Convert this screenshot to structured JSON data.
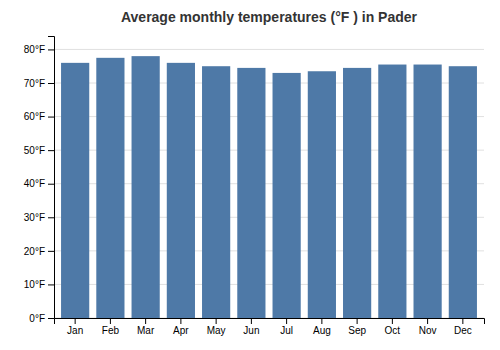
{
  "chart_data": {
    "type": "bar",
    "title": "Average monthly temperatures (°F ) in Pader",
    "categories": [
      "Jan",
      "Feb",
      "Mar",
      "Apr",
      "May",
      "Jun",
      "Jul",
      "Aug",
      "Sep",
      "Oct",
      "Nov",
      "Dec"
    ],
    "values": [
      76,
      77.5,
      78,
      76,
      75,
      74.5,
      73,
      73.5,
      74.5,
      75.5,
      75.5,
      75
    ],
    "ylim": [
      0,
      84
    ],
    "yticks": [
      {
        "value": 0,
        "label": "0°F"
      },
      {
        "value": 10,
        "label": "10°F"
      },
      {
        "value": 20,
        "label": "20°F"
      },
      {
        "value": 30,
        "label": "30°F"
      },
      {
        "value": 40,
        "label": "40°F"
      },
      {
        "value": 50,
        "label": "50°F"
      },
      {
        "value": 60,
        "label": "60°F"
      },
      {
        "value": 70,
        "label": "70°F"
      },
      {
        "value": 80,
        "label": "80°F"
      }
    ],
    "grid": true
  }
}
